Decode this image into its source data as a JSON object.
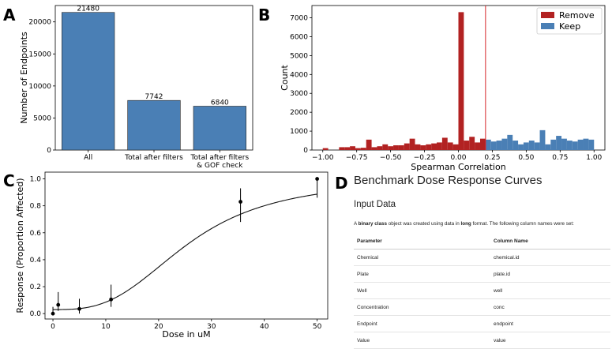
{
  "chart_data": [
    {
      "panel": "A",
      "type": "bar",
      "categories": [
        "All",
        "Total after filters",
        "Total after filters & GOF check"
      ],
      "category_lines": [
        [
          "All"
        ],
        [
          "Total after filters"
        ],
        [
          "Total after filters",
          "& GOF check"
        ]
      ],
      "values": [
        21480,
        7742,
        6840
      ],
      "value_labels": [
        "21480",
        "7742",
        "6840"
      ],
      "ylabel": "Number of Endpoints",
      "xlabel": "",
      "ylim": [
        0,
        22554
      ],
      "yticks": [
        0,
        5000,
        10000,
        15000,
        20000
      ],
      "bar_color": "#4a7fb5"
    },
    {
      "panel": "B",
      "type": "bar",
      "histogram": true,
      "xlabel": "Spearman Correlation",
      "ylabel": "Count",
      "xlim": [
        -1.08,
        1.08
      ],
      "ylim": [
        0,
        7650
      ],
      "xticks": [
        -1.0,
        -0.75,
        -0.5,
        -0.25,
        0.0,
        0.25,
        0.5,
        0.75,
        1.0
      ],
      "xtick_labels": [
        "−1.00",
        "−0.75",
        "−0.50",
        "−0.25",
        "0.00",
        "0.25",
        "0.50",
        "0.75",
        "1.00"
      ],
      "yticks": [
        0,
        1000,
        2000,
        3000,
        4000,
        5000,
        6000,
        7000
      ],
      "bin_width": 0.04,
      "threshold": 0.2,
      "threshold_color": "#d62728",
      "legend_position": "top-right",
      "series": [
        {
          "name": "Remove",
          "color": "#b22222",
          "bin_starts": [
            -1.0,
            -0.96,
            -0.92,
            -0.88,
            -0.84,
            -0.8,
            -0.76,
            -0.72,
            -0.68,
            -0.64,
            -0.6,
            -0.56,
            -0.52,
            -0.48,
            -0.44,
            -0.4,
            -0.36,
            -0.32,
            -0.28,
            -0.24,
            -0.2,
            -0.16,
            -0.12,
            -0.08,
            -0.04,
            0.0,
            0.04,
            0.08,
            0.12,
            0.16
          ],
          "values": [
            100,
            0,
            0,
            150,
            150,
            200,
            100,
            120,
            550,
            150,
            200,
            300,
            200,
            250,
            250,
            350,
            600,
            300,
            250,
            300,
            350,
            400,
            650,
            400,
            300,
            7300,
            500,
            700,
            400,
            600
          ]
        },
        {
          "name": "Keep",
          "color": "#4a7fb5",
          "bin_starts": [
            0.2,
            0.24,
            0.28,
            0.32,
            0.36,
            0.4,
            0.44,
            0.48,
            0.52,
            0.56,
            0.6,
            0.64,
            0.68,
            0.72,
            0.76,
            0.8,
            0.84,
            0.88,
            0.92,
            0.96
          ],
          "values": [
            550,
            450,
            500,
            600,
            800,
            500,
            300,
            400,
            500,
            400,
            1050,
            300,
            550,
            750,
            600,
            500,
            450,
            550,
            600,
            550
          ]
        }
      ]
    },
    {
      "panel": "C",
      "type": "scatter",
      "xlabel": "Dose in uM",
      "ylabel": "Response (Proportion Affected)",
      "xlim": [
        -1.5,
        52.0
      ],
      "ylim": [
        -0.04,
        1.05
      ],
      "xticks": [
        0,
        10,
        20,
        30,
        40,
        50
      ],
      "yticks": [
        0.0,
        0.2,
        0.4,
        0.6,
        0.8,
        1.0
      ],
      "points": [
        {
          "x": 0.0,
          "y": 0.0,
          "lo": 0.0,
          "hi": 0.05
        },
        {
          "x": 1.0,
          "y": 0.065,
          "lo": 0.02,
          "hi": 0.16
        },
        {
          "x": 5.0,
          "y": 0.035,
          "lo": 0.0,
          "hi": 0.11
        },
        {
          "x": 11.0,
          "y": 0.105,
          "lo": 0.05,
          "hi": 0.215
        },
        {
          "x": 35.5,
          "y": 0.83,
          "lo": 0.68,
          "hi": 0.93
        },
        {
          "x": 50.0,
          "y": 1.0,
          "lo": 0.86,
          "hi": 1.0
        }
      ],
      "fit": {
        "model": "log-logistic",
        "bottom": 0.03,
        "top": 1.0,
        "ec50": 25.5,
        "hill": 3.0
      }
    }
  ],
  "panel_letters": {
    "a": "A",
    "b": "B",
    "c": "C",
    "d": "D"
  },
  "panelD": {
    "title": "Benchmark Dose Response Curves",
    "subtitle": "Input Data",
    "intro": {
      "pre": "A ",
      "b1": "binary class",
      "mid": " object was created using data in ",
      "b2": "long",
      "post": " format. The following column names were set:"
    },
    "table": {
      "headers": [
        "Parameter",
        "Column Name"
      ],
      "rows": [
        [
          "Chemical",
          "chemical.id"
        ],
        [
          "Plate",
          "plate.id"
        ],
        [
          "Well",
          "well"
        ],
        [
          "Concentration",
          "conc"
        ],
        [
          "Endpoint",
          "endpoint"
        ],
        [
          "Value",
          "value"
        ]
      ]
    }
  }
}
